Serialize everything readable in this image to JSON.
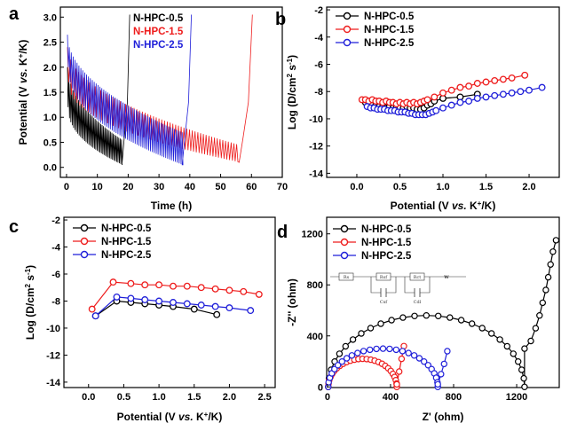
{
  "panels": [
    {
      "id": "a",
      "label": "a",
      "type": "line",
      "xlabel": "Time (h)",
      "ylabel": "Potential (V vs. K+/K)",
      "xlim": [
        -2,
        70
      ],
      "ylim": [
        -0.2,
        3.2
      ],
      "xticks": [
        "0",
        "10",
        "20",
        "30",
        "40",
        "50",
        "60",
        "70"
      ],
      "xtick_values": [
        0,
        10,
        20,
        30,
        40,
        50,
        60,
        70
      ],
      "yticks": [
        "0.0",
        "0.5",
        "1.0",
        "1.5",
        "2.0",
        "2.5",
        "3.0"
      ],
      "ytick_values": [
        0,
        0.5,
        1.0,
        1.5,
        2.0,
        2.5,
        3.0
      ],
      "legend_pos": "top-center",
      "series": [
        {
          "name": "N-HPC-0.5",
          "color": "#000000",
          "t_end": 18,
          "t_charge_end": 20.5,
          "hi": [
            2.0,
            0.55
          ],
          "lo": [
            1.2,
            0.05
          ],
          "pulse_period": 0.45
        },
        {
          "name": "N-HPC-1.5",
          "color": "#ee1c1c",
          "t_end": 56,
          "t_charge_end": 60.3,
          "hi": [
            2.4,
            0.45
          ],
          "lo": [
            1.7,
            0.1
          ],
          "pulse_period": 0.9
        },
        {
          "name": "N-HPC-2.5",
          "color": "#1f1fd9",
          "t_end": 37.5,
          "t_charge_end": 40.5,
          "hi": [
            2.65,
            0.7
          ],
          "lo": [
            2.0,
            0.05
          ],
          "pulse_period": 0.62
        }
      ]
    },
    {
      "id": "b",
      "label": "b",
      "type": "scatter-line",
      "xlabel": "Potential (V vs. K+/K)",
      "ylabel": "Log (D/cm2 s-1)",
      "xlim": [
        -0.35,
        2.35
      ],
      "ylim": [
        -14.3,
        -1.8
      ],
      "xticks": [
        "0.0",
        "0.5",
        "1.0",
        "1.5",
        "2.0"
      ],
      "xtick_values": [
        0,
        0.5,
        1.0,
        1.5,
        2.0
      ],
      "yticks": [
        "-2",
        "-4",
        "-6",
        "-8",
        "-10",
        "-12",
        "-14"
      ],
      "ytick_values": [
        -2,
        -4,
        -6,
        -8,
        -10,
        -12,
        -14
      ],
      "legend_pos": "top-left",
      "series": [
        {
          "name": "N-HPC-0.5",
          "color": "#000000",
          "x": [
            0.1,
            0.14,
            0.18,
            0.22,
            0.26,
            0.3,
            0.34,
            0.38,
            0.42,
            0.46,
            0.5,
            0.54,
            0.58,
            0.62,
            0.66,
            0.7,
            0.74,
            0.78,
            0.82,
            0.86,
            0.9,
            1.0,
            1.2,
            1.4
          ],
          "y": [
            -8.8,
            -8.9,
            -9.0,
            -9.0,
            -9.1,
            -9.1,
            -9.2,
            -9.1,
            -9.2,
            -9.1,
            -9.2,
            -9.2,
            -9.1,
            -9.2,
            -9.2,
            -9.3,
            -9.3,
            -9.2,
            -9.0,
            -8.9,
            -8.7,
            -8.5,
            -8.4,
            -8.2
          ]
        },
        {
          "name": "N-HPC-1.5",
          "color": "#ee1c1c",
          "x": [
            0.06,
            0.1,
            0.14,
            0.18,
            0.22,
            0.26,
            0.3,
            0.34,
            0.38,
            0.42,
            0.46,
            0.5,
            0.54,
            0.58,
            0.62,
            0.66,
            0.7,
            0.74,
            0.78,
            0.82,
            0.9,
            1.0,
            1.1,
            1.2,
            1.3,
            1.4,
            1.5,
            1.6,
            1.7,
            1.8,
            1.95
          ],
          "y": [
            -8.6,
            -8.6,
            -8.7,
            -8.6,
            -8.7,
            -8.7,
            -8.8,
            -8.7,
            -8.8,
            -8.8,
            -8.9,
            -8.8,
            -8.9,
            -8.8,
            -8.9,
            -8.8,
            -8.9,
            -8.8,
            -8.7,
            -8.6,
            -8.4,
            -8.1,
            -7.9,
            -7.7,
            -7.6,
            -7.4,
            -7.3,
            -7.2,
            -7.1,
            -7.0,
            -6.8
          ]
        },
        {
          "name": "N-HPC-2.5",
          "color": "#1f1fd9",
          "x": [
            0.12,
            0.16,
            0.2,
            0.24,
            0.28,
            0.32,
            0.36,
            0.4,
            0.44,
            0.48,
            0.52,
            0.56,
            0.6,
            0.64,
            0.68,
            0.72,
            0.76,
            0.8,
            0.84,
            0.88,
            0.92,
            1.0,
            1.1,
            1.2,
            1.3,
            1.4,
            1.5,
            1.6,
            1.7,
            1.8,
            1.9,
            2.0,
            2.15
          ],
          "y": [
            -9.1,
            -9.2,
            -9.2,
            -9.3,
            -9.3,
            -9.3,
            -9.4,
            -9.4,
            -9.4,
            -9.5,
            -9.5,
            -9.5,
            -9.6,
            -9.6,
            -9.7,
            -9.7,
            -9.7,
            -9.7,
            -9.6,
            -9.5,
            -9.4,
            -9.2,
            -9.0,
            -8.8,
            -8.7,
            -8.5,
            -8.4,
            -8.3,
            -8.2,
            -8.1,
            -8.0,
            -7.9,
            -7.7
          ]
        }
      ]
    },
    {
      "id": "c",
      "label": "c",
      "type": "scatter-line",
      "xlabel": "Potential (V vs. K+/K)",
      "ylabel": "Log (D/cm2 s-1)",
      "xlim": [
        -0.35,
        2.65
      ],
      "ylim": [
        -14.4,
        -1.8
      ],
      "xticks": [
        "0.0",
        "0.5",
        "1.0",
        "1.5",
        "2.0",
        "2.5"
      ],
      "xtick_values": [
        0,
        0.5,
        1.0,
        1.5,
        2.0,
        2.5
      ],
      "yticks": [
        "-2",
        "-4",
        "-6",
        "-8",
        "-10",
        "-12",
        "-14"
      ],
      "ytick_values": [
        -2,
        -4,
        -6,
        -8,
        -10,
        -12,
        -14
      ],
      "legend_pos": "top-left",
      "series": [
        {
          "name": "N-HPC-0.5",
          "color": "#000000",
          "x": [
            0.1,
            0.4,
            0.6,
            0.8,
            1.0,
            1.2,
            1.5,
            1.82
          ],
          "y": [
            -9.1,
            -8.0,
            -8.1,
            -8.2,
            -8.3,
            -8.4,
            -8.6,
            -9.0
          ]
        },
        {
          "name": "N-HPC-1.5",
          "color": "#ee1c1c",
          "x": [
            0.05,
            0.35,
            0.6,
            0.8,
            1.0,
            1.2,
            1.4,
            1.6,
            1.8,
            2.0,
            2.2,
            2.42
          ],
          "y": [
            -8.6,
            -6.6,
            -6.7,
            -6.8,
            -6.8,
            -6.9,
            -6.9,
            -7.0,
            -7.1,
            -7.2,
            -7.3,
            -7.5
          ]
        },
        {
          "name": "N-HPC-2.5",
          "color": "#1f1fd9",
          "x": [
            0.1,
            0.4,
            0.6,
            0.8,
            1.0,
            1.2,
            1.4,
            1.6,
            1.8,
            2.0,
            2.3
          ],
          "y": [
            -9.1,
            -7.7,
            -7.8,
            -7.9,
            -8.0,
            -8.1,
            -8.2,
            -8.3,
            -8.4,
            -8.5,
            -8.7
          ]
        }
      ]
    },
    {
      "id": "d",
      "label": "d",
      "type": "nyquist",
      "xlabel": "Z' (ohm)",
      "ylabel": "-Z'' (ohm)",
      "xlim": [
        -5,
        1470
      ],
      "ylim": [
        -5,
        1330
      ],
      "xticks": [
        "0",
        "400",
        "800",
        "1200"
      ],
      "xtick_values": [
        0,
        400,
        800,
        1200
      ],
      "yticks": [
        "0",
        "400",
        "800",
        "1200"
      ],
      "ytick_values": [
        0,
        400,
        800,
        1200
      ],
      "legend_pos": "top-left",
      "circuit_labels": [
        "Rs",
        "Rsf",
        "Rct",
        "W",
        "Csf",
        "Cdl"
      ],
      "series": [
        {
          "name": "N-HPC-0.5",
          "color": "#000000",
          "semicircle": [
            5,
            1250,
            560
          ],
          "tail": [
            [
              1250,
              300
            ],
            [
              1290,
              360
            ],
            [
              1320,
              460
            ],
            [
              1345,
              560
            ],
            [
              1365,
              660
            ],
            [
              1385,
              760
            ],
            [
              1400,
              860
            ],
            [
              1415,
              960
            ],
            [
              1430,
              1060
            ],
            [
              1450,
              1150
            ]
          ]
        },
        {
          "name": "N-HPC-1.5",
          "color": "#ee1c1c",
          "semicircle": [
            5,
            440,
            220
          ],
          "tail": [
            [
              440,
              20
            ],
            [
              455,
              120
            ],
            [
              470,
              220
            ],
            [
              485,
              320
            ]
          ]
        },
        {
          "name": "N-HPC-2.5",
          "color": "#1f1fd9",
          "semicircle": [
            5,
            700,
            300
          ],
          "tail": [
            [
              700,
              20
            ],
            [
              720,
              100
            ],
            [
              740,
              180
            ],
            [
              760,
              280
            ]
          ]
        }
      ]
    }
  ]
}
